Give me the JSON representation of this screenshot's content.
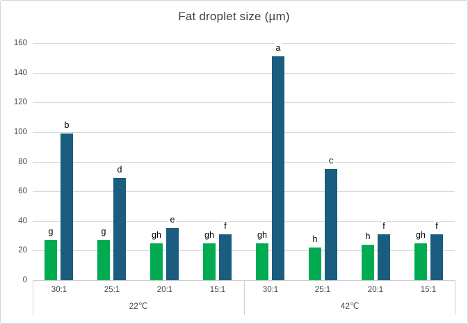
{
  "chart_data": {
    "type": "bar",
    "title": "Fat droplet size (µm)",
    "y_axis": {
      "min": 0,
      "max": 160,
      "step": 20,
      "tick_labels": [
        "0",
        "20",
        "40",
        "60",
        "80",
        "100",
        "120",
        "140",
        "160"
      ]
    },
    "grid": true,
    "legend": "none",
    "group_labels": [
      "22℃",
      "42℃"
    ],
    "categories": [
      "30:1",
      "25:1",
      "20:1",
      "15:1",
      "30:1",
      "25:1",
      "20:1",
      "15:1"
    ],
    "series": [
      {
        "name": "green-series",
        "color": "#00ab52",
        "values": [
          27,
          27,
          25,
          25,
          25,
          22,
          24,
          25
        ],
        "point_labels": [
          "g",
          "g",
          "gh",
          "gh",
          "gh",
          "h",
          "h",
          "gh"
        ]
      },
      {
        "name": "teal-series",
        "color": "#1b5d7e",
        "values": [
          99,
          69,
          35,
          31,
          151,
          75,
          31,
          31
        ],
        "point_labels": [
          "b",
          "d",
          "e",
          "f",
          "a",
          "c",
          "f",
          "f"
        ]
      }
    ],
    "colors": {
      "gridline": "#d9d9d9",
      "axis_line": "#cfcfcf",
      "axis_text": "#454545",
      "point_label_text": "#000000",
      "title_text": "#3f3f3f"
    }
  }
}
